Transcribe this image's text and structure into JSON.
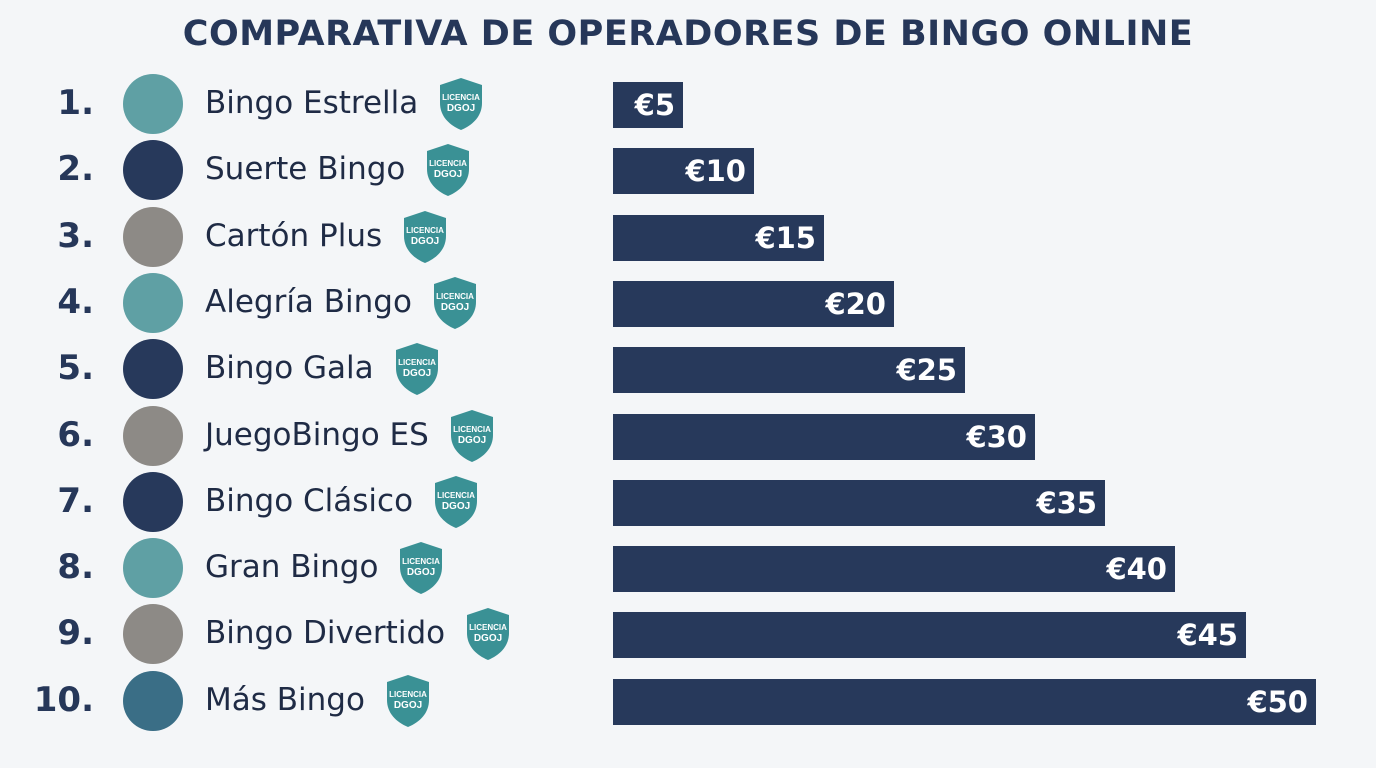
{
  "title": "COMPARATIVA DE OPERADORES DE BINGO ONLINE",
  "colors": {
    "navy": "#27395b",
    "teal": "#5fa0a4",
    "taupe": "#8d8a86",
    "steel": "#3a6e86",
    "badge": "#3a9195"
  },
  "badge_text": {
    "line1": "LICENCIA",
    "line2": "DGOJ"
  },
  "operators": [
    {
      "rank": "1.",
      "name": "Bingo Estrella",
      "color": "teal"
    },
    {
      "rank": "2.",
      "name": "Suerte Bingo",
      "color": "navy"
    },
    {
      "rank": "3.",
      "name": "Cartón Plus",
      "color": "taupe"
    },
    {
      "rank": "4.",
      "name": "Alegría Bingo",
      "color": "teal"
    },
    {
      "rank": "5.",
      "name": "Bingo Gala",
      "color": "navy"
    },
    {
      "rank": "6.",
      "name": "JuegoBingo ES",
      "color": "taupe"
    },
    {
      "rank": "7.",
      "name": "Bingo Clásico",
      "color": "navy"
    },
    {
      "rank": "8.",
      "name": "Gran Bingo",
      "color": "teal"
    },
    {
      "rank": "9.",
      "name": "Bingo Divertido",
      "color": "taupe"
    },
    {
      "rank": "10.",
      "name": "Más Bingo",
      "color": "steel"
    }
  ],
  "chart_data": {
    "type": "bar",
    "orientation": "horizontal",
    "title": "COMPARATIVA DE OPERADORES DE BINGO ONLINE",
    "categories": [
      "Bingo Estrella",
      "Suerte Bingo",
      "Cartón Plus",
      "Alegría Bingo",
      "Bingo Gala",
      "JuegoBingo ES",
      "Bingo Clásico",
      "Gran Bingo",
      "Bingo Divertido",
      "Más Bingo"
    ],
    "values": [
      5,
      10,
      15,
      20,
      25,
      30,
      35,
      40,
      45,
      50
    ],
    "value_labels": [
      "€5",
      "€10",
      "€15",
      "€20",
      "€25",
      "€30",
      "€35",
      "€40",
      "€45",
      "€50"
    ],
    "xlim": [
      0,
      50
    ],
    "grid": false,
    "legend": "none"
  }
}
